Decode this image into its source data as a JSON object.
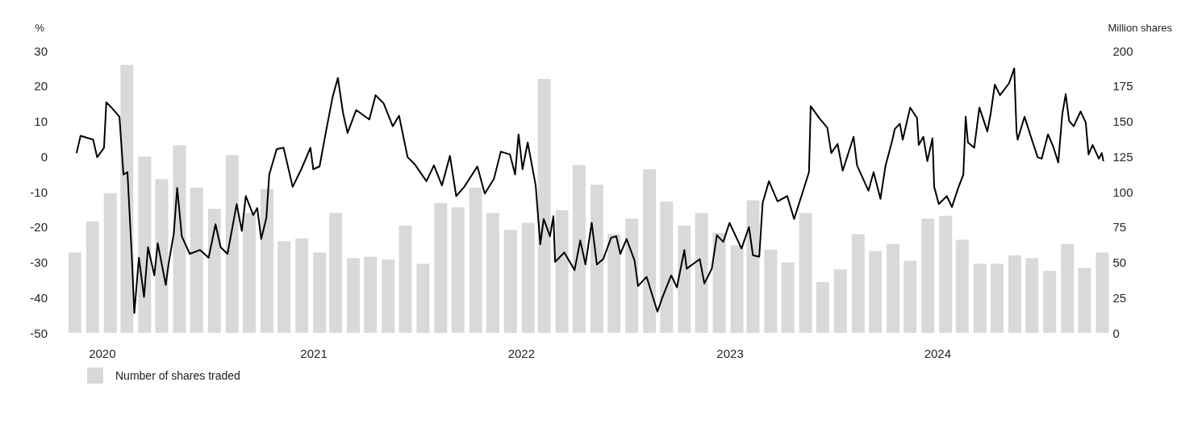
{
  "chart_data": {
    "type": "line",
    "ylabel": "%",
    "y2label": "Million shares",
    "legend": "bottom left",
    "xlim": [
      "2019-11-20",
      "2024-11-11"
    ],
    "xticks": [
      {
        "value": "2020-01-18",
        "label": "2020"
      },
      {
        "value": "2021-01-22",
        "label": "2021"
      },
      {
        "value": "2022-01-20",
        "label": "2022"
      },
      {
        "value": "2023-01-20",
        "label": "2023"
      },
      {
        "value": "2024-01-18",
        "label": "2024"
      }
    ],
    "ylim": [
      -50,
      30
    ],
    "yticks": [
      -50,
      -40,
      -30,
      -20,
      -10,
      0,
      10,
      20,
      30
    ],
    "y2lim": [
      0,
      200
    ],
    "y2ticks": [
      0,
      25,
      50,
      75,
      100,
      125,
      150,
      175,
      200
    ],
    "x": [
      "2019-12",
      "2020-01",
      "2020-02",
      "2020-03",
      "2020-04",
      "2020-05",
      "2020-06",
      "2020-07",
      "2020-08",
      "2020-09",
      "2020-10",
      "2020-11",
      "2020-12",
      "2021-01",
      "2021-02",
      "2021-03",
      "2021-04",
      "2021-05",
      "2021-06",
      "2021-07",
      "2021-08",
      "2021-09",
      "2021-10",
      "2021-11",
      "2021-12",
      "2022-01",
      "2022-02",
      "2022-03",
      "2022-04",
      "2022-05",
      "2022-06",
      "2022-07",
      "2022-08",
      "2022-09",
      "2022-10",
      "2022-11",
      "2022-12",
      "2023-01",
      "2023-02",
      "2023-03",
      "2023-04",
      "2023-05",
      "2023-06",
      "2023-07",
      "2023-08",
      "2023-09",
      "2023-10",
      "2023-11",
      "2023-12",
      "2024-01",
      "2024-02",
      "2024-03",
      "2024-04",
      "2024-05",
      "2024-06",
      "2024-07",
      "2024-08",
      "2024-09",
      "2024-10",
      "2024-11"
    ],
    "series": [
      {
        "name": "Number of shares traded",
        "type": "bar",
        "axis": "y2",
        "color": "#d9d9d9",
        "values": [
          57,
          79,
          99,
          190,
          125,
          109,
          133,
          103,
          88,
          126,
          85,
          102,
          65,
          67,
          57,
          85,
          53,
          54,
          52,
          76,
          49,
          92,
          89,
          103,
          85,
          73,
          78,
          180,
          87,
          119,
          105,
          70,
          81,
          116,
          93,
          76,
          85,
          71,
          62,
          94,
          59,
          50,
          85,
          36,
          45,
          70,
          58,
          63,
          51,
          81,
          83,
          66,
          49,
          49,
          55,
          53,
          44,
          63,
          46,
          57
        ]
      },
      {
        "color": "#000000",
        "x": [
          "2019-12-04",
          "2019-12-11",
          "2020-01-02",
          "2020-01-09",
          "2020-01-21",
          "2020-01-25",
          "2020-02-03",
          "2020-02-17",
          "2020-02-24",
          "2020-03-02",
          "2020-03-10",
          "2020-03-14",
          "2020-03-22",
          "2020-03-31",
          "2020-04-07",
          "2020-04-18",
          "2020-04-24",
          "2020-05-08",
          "2020-05-13",
          "2020-05-22",
          "2020-05-28",
          "2020-06-05",
          "2020-06-19",
          "2020-07-07",
          "2020-07-22",
          "2020-08-03",
          "2020-08-12",
          "2020-08-24",
          "2020-09-09",
          "2020-09-18",
          "2020-09-25",
          "2020-10-08",
          "2020-10-15",
          "2020-10-22",
          "2020-10-31",
          "2020-11-05",
          "2020-11-18",
          "2020-11-30",
          "2020-12-16",
          "2020-12-31",
          "2021-01-16",
          "2021-01-21",
          "2021-02-01",
          "2021-02-13",
          "2021-02-24",
          "2021-03-05",
          "2021-03-14",
          "2021-03-22",
          "2021-04-06",
          "2021-04-29",
          "2021-05-10",
          "2021-05-24",
          "2021-06-09",
          "2021-06-20",
          "2021-07-05",
          "2021-07-17",
          "2021-08-07",
          "2021-08-20",
          "2021-09-03",
          "2021-09-17",
          "2021-09-28",
          "2021-10-12",
          "2021-11-04",
          "2021-11-17",
          "2021-12-03",
          "2021-12-15",
          "2021-12-31",
          "2022-01-09",
          "2022-01-15",
          "2022-01-22",
          "2022-01-31",
          "2022-02-14",
          "2022-02-22",
          "2022-02-28",
          "2022-03-11",
          "2022-03-17",
          "2022-03-20",
          "2022-04-05",
          "2022-04-23",
          "2022-05-03",
          "2022-05-12",
          "2022-05-23",
          "2022-06-01",
          "2022-06-12",
          "2022-06-26",
          "2022-07-05",
          "2022-07-12",
          "2022-07-23",
          "2022-08-06",
          "2022-08-12",
          "2022-08-27",
          "2022-09-15",
          "2022-09-23",
          "2022-10-09",
          "2022-10-19",
          "2022-11-01",
          "2022-11-05",
          "2022-11-28",
          "2022-12-06",
          "2022-12-19",
          "2022-12-28",
          "2023-01-08",
          "2023-01-19",
          "2023-02-09",
          "2023-02-22",
          "2023-03-01",
          "2023-03-12",
          "2023-03-18",
          "2023-03-29",
          "2023-04-13",
          "2023-04-30",
          "2023-05-12",
          "2023-05-24",
          "2023-06-07",
          "2023-06-10",
          "2023-06-25",
          "2023-07-09",
          "2023-07-16",
          "2023-07-27",
          "2023-08-05",
          "2023-08-24",
          "2023-08-30",
          "2023-09-19",
          "2023-09-28",
          "2023-10-10",
          "2023-10-19",
          "2023-10-31",
          "2023-11-04",
          "2023-11-13",
          "2023-11-18",
          "2023-12-01",
          "2023-12-13",
          "2023-12-16",
          "2023-12-24",
          "2023-12-31",
          "2024-01-09",
          "2024-01-12",
          "2024-01-20",
          "2024-02-03",
          "2024-02-12",
          "2024-02-23",
          "2024-03-03",
          "2024-03-07",
          "2024-03-11",
          "2024-03-22",
          "2024-03-31",
          "2024-04-14",
          "2024-04-20",
          "2024-04-27",
          "2024-05-06",
          "2024-05-22",
          "2024-05-31",
          "2024-06-04",
          "2024-06-06",
          "2024-06-18",
          "2024-06-30",
          "2024-07-11",
          "2024-07-18",
          "2024-07-29",
          "2024-08-07",
          "2024-08-16",
          "2024-08-23",
          "2024-08-29",
          "2024-09-04",
          "2024-09-12",
          "2024-09-24",
          "2024-10-03",
          "2024-10-08",
          "2024-10-15",
          "2024-10-26",
          "2024-10-31",
          "2024-11-03"
        ],
        "values": [
          1.0,
          5.9,
          4.8,
          -0.2,
          2.5,
          15.4,
          13.9,
          11.3,
          -5.1,
          -4.4,
          -29.5,
          -44.4,
          -28.7,
          -39.8,
          -25.7,
          -33.7,
          -24.6,
          -36.4,
          -30.3,
          -21.9,
          -8.9,
          -22.6,
          -27.6,
          -26.5,
          -28.7,
          -19.2,
          -25.7,
          -27.6,
          -13.5,
          -21.1,
          -11.2,
          -16.6,
          -14.6,
          -23.4,
          -17.3,
          -5.1,
          2.1,
          2.5,
          -8.6,
          -3.6,
          2.5,
          -3.6,
          -2.8,
          7.8,
          17.0,
          22.3,
          12.4,
          6.7,
          13.2,
          10.5,
          17.4,
          15.1,
          8.6,
          11.6,
          -0.2,
          -2.1,
          -7.0,
          -2.5,
          -8.2,
          0.2,
          -11.2,
          -8.6,
          -2.8,
          -10.5,
          -6.3,
          1.4,
          0.6,
          -5.1,
          6.3,
          -3.6,
          4.0,
          -8.2,
          -24.9,
          -17.7,
          -22.6,
          -16.9,
          -29.9,
          -27.2,
          -32.2,
          -23.8,
          -30.6,
          -18.8,
          -30.6,
          -29.1,
          -23.0,
          -22.6,
          -27.6,
          -23.4,
          -29.5,
          -36.7,
          -34.1,
          -44.0,
          -40.2,
          -33.7,
          -37.1,
          -26.5,
          -31.8,
          -29.1,
          -36.0,
          -31.8,
          -22.3,
          -24.2,
          -18.8,
          -26.1,
          -20.0,
          -28.0,
          -28.4,
          -13.1,
          -7.0,
          -12.7,
          -11.2,
          -17.7,
          -11.6,
          -4.4,
          14.3,
          10.9,
          8.2,
          1.0,
          3.6,
          -4.0,
          5.6,
          -2.5,
          -9.7,
          -4.4,
          -12.0,
          -2.5,
          4.8,
          7.8,
          9.3,
          4.8,
          13.9,
          10.9,
          3.3,
          5.6,
          -1.3,
          5.2,
          -8.6,
          -13.5,
          -11.2,
          -14.3,
          -8.9,
          -5.1,
          11.3,
          4.0,
          2.5,
          13.9,
          7.1,
          12.4,
          20.4,
          17.4,
          20.8,
          25.0,
          7.1,
          4.8,
          11.3,
          5.2,
          -0.2,
          -0.6,
          6.3,
          2.9,
          -1.7,
          12.0,
          17.7,
          10.1,
          8.6,
          12.8,
          9.7,
          0.6,
          3.3,
          -0.6,
          1.0,
          -1.3
        ]
      }
    ]
  }
}
